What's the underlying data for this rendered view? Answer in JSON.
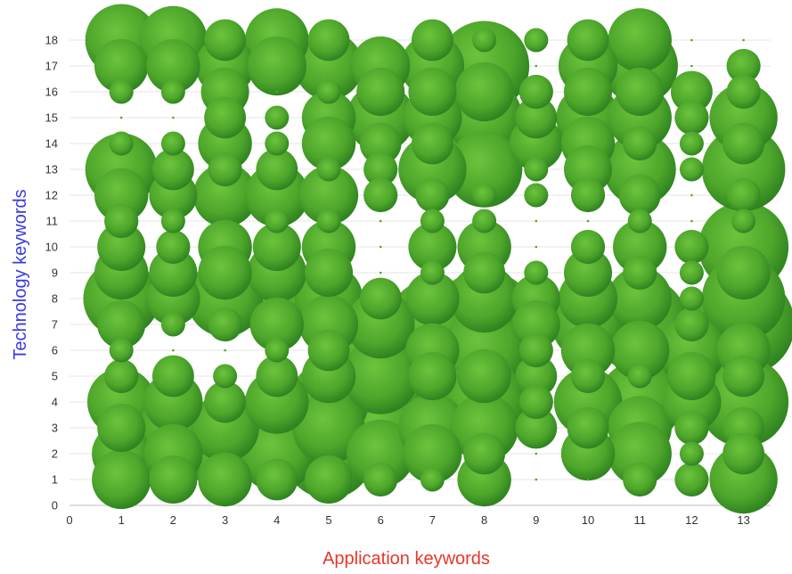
{
  "chart_data": {
    "type": "bubble",
    "xlabel": "Application keywords",
    "ylabel": "Technology keywords",
    "xlim": [
      0,
      13
    ],
    "ylim": [
      0,
      18
    ],
    "x_ticks": [
      "0",
      "1",
      "2",
      "3",
      "4",
      "5",
      "6",
      "7",
      "8",
      "9",
      "10",
      "11",
      "12",
      "13"
    ],
    "y_ticks": [
      "0",
      "1",
      "2",
      "3",
      "4",
      "5",
      "6",
      "7",
      "8",
      "9",
      "10",
      "11",
      "12",
      "13",
      "14",
      "15",
      "16",
      "17",
      "18"
    ],
    "grid": true,
    "legend": "none",
    "colors": {
      "bubble": "#4ea62b",
      "bubble_light": "#6cc43d",
      "bubble_dark": "#2f8420",
      "xlabel": "#e8362a",
      "ylabel": "#3a3ae0"
    },
    "points": [
      {
        "x": 1,
        "y": 18,
        "s": 9
      },
      {
        "x": 1,
        "y": 17,
        "s": 5
      },
      {
        "x": 1,
        "y": 16,
        "s": 1
      },
      {
        "x": 1,
        "y": 15,
        "s": 0
      },
      {
        "x": 1,
        "y": 14,
        "s": 1
      },
      {
        "x": 1,
        "y": 13,
        "s": 9
      },
      {
        "x": 1,
        "y": 12,
        "s": 5
      },
      {
        "x": 1,
        "y": 11,
        "s": 2
      },
      {
        "x": 1,
        "y": 10,
        "s": 4
      },
      {
        "x": 1,
        "y": 9,
        "s": 5
      },
      {
        "x": 1,
        "y": 8,
        "s": 10
      },
      {
        "x": 1,
        "y": 7,
        "s": 4
      },
      {
        "x": 1,
        "y": 6,
        "s": 1
      },
      {
        "x": 1,
        "y": 5,
        "s": 2
      },
      {
        "x": 1,
        "y": 4,
        "s": 8
      },
      {
        "x": 1,
        "y": 3,
        "s": 4
      },
      {
        "x": 1,
        "y": 2,
        "s": 6
      },
      {
        "x": 1,
        "y": 1,
        "s": 6
      },
      {
        "x": 2,
        "y": 18,
        "s": 8
      },
      {
        "x": 2,
        "y": 17,
        "s": 5
      },
      {
        "x": 2,
        "y": 16,
        "s": 1
      },
      {
        "x": 2,
        "y": 15,
        "s": 0
      },
      {
        "x": 2,
        "y": 14,
        "s": 1
      },
      {
        "x": 2,
        "y": 13,
        "s": 3
      },
      {
        "x": 2,
        "y": 12,
        "s": 4
      },
      {
        "x": 2,
        "y": 11,
        "s": 1
      },
      {
        "x": 2,
        "y": 10,
        "s": 2
      },
      {
        "x": 2,
        "y": 9,
        "s": 4
      },
      {
        "x": 2,
        "y": 8,
        "s": 5
      },
      {
        "x": 2,
        "y": 7,
        "s": 1
      },
      {
        "x": 2,
        "y": 6,
        "s": 0
      },
      {
        "x": 2,
        "y": 5,
        "s": 3
      },
      {
        "x": 2,
        "y": 4,
        "s": 6
      },
      {
        "x": 2,
        "y": 3,
        "s": 8
      },
      {
        "x": 2,
        "y": 2,
        "s": 6
      },
      {
        "x": 2,
        "y": 1,
        "s": 4
      },
      {
        "x": 3,
        "y": 18,
        "s": 3
      },
      {
        "x": 3,
        "y": 17,
        "s": 6
      },
      {
        "x": 3,
        "y": 16,
        "s": 4
      },
      {
        "x": 3,
        "y": 15,
        "s": 3
      },
      {
        "x": 3,
        "y": 14,
        "s": 5
      },
      {
        "x": 3,
        "y": 13,
        "s": 2
      },
      {
        "x": 3,
        "y": 12,
        "s": 7
      },
      {
        "x": 3,
        "y": 11,
        "s": 0
      },
      {
        "x": 3,
        "y": 10,
        "s": 5
      },
      {
        "x": 3,
        "y": 9,
        "s": 5
      },
      {
        "x": 3,
        "y": 8,
        "s": 10
      },
      {
        "x": 3,
        "y": 7,
        "s": 2
      },
      {
        "x": 3,
        "y": 6,
        "s": 0
      },
      {
        "x": 3,
        "y": 5,
        "s": 1
      },
      {
        "x": 3,
        "y": 4,
        "s": 3
      },
      {
        "x": 3,
        "y": 3,
        "s": 8
      },
      {
        "x": 3,
        "y": 2,
        "s": 10
      },
      {
        "x": 3,
        "y": 1,
        "s": 5
      },
      {
        "x": 4,
        "y": 18,
        "s": 7
      },
      {
        "x": 4,
        "y": 17,
        "s": 6
      },
      {
        "x": 4,
        "y": 16,
        "s": 0
      },
      {
        "x": 4,
        "y": 15,
        "s": 1
      },
      {
        "x": 4,
        "y": 14,
        "s": 1
      },
      {
        "x": 4,
        "y": 13,
        "s": 3
      },
      {
        "x": 4,
        "y": 12,
        "s": 7
      },
      {
        "x": 4,
        "y": 11,
        "s": 1
      },
      {
        "x": 4,
        "y": 10,
        "s": 4
      },
      {
        "x": 4,
        "y": 9,
        "s": 6
      },
      {
        "x": 4,
        "y": 8,
        "s": 11
      },
      {
        "x": 4,
        "y": 7,
        "s": 5
      },
      {
        "x": 4,
        "y": 6,
        "s": 1
      },
      {
        "x": 4,
        "y": 5,
        "s": 3
      },
      {
        "x": 4,
        "y": 4,
        "s": 7
      },
      {
        "x": 4,
        "y": 3,
        "s": 14
      },
      {
        "x": 4,
        "y": 2,
        "s": 10
      },
      {
        "x": 4,
        "y": 1,
        "s": 3
      },
      {
        "x": 5,
        "y": 18,
        "s": 3
      },
      {
        "x": 5,
        "y": 17,
        "s": 8
      },
      {
        "x": 5,
        "y": 16,
        "s": 1
      },
      {
        "x": 5,
        "y": 15,
        "s": 5
      },
      {
        "x": 5,
        "y": 14,
        "s": 5
      },
      {
        "x": 5,
        "y": 13,
        "s": 1
      },
      {
        "x": 5,
        "y": 12,
        "s": 6
      },
      {
        "x": 5,
        "y": 11,
        "s": 1
      },
      {
        "x": 5,
        "y": 10,
        "s": 5
      },
      {
        "x": 5,
        "y": 9,
        "s": 4
      },
      {
        "x": 5,
        "y": 8,
        "s": 8
      },
      {
        "x": 5,
        "y": 7,
        "s": 6
      },
      {
        "x": 5,
        "y": 6,
        "s": 3
      },
      {
        "x": 5,
        "y": 5,
        "s": 5
      },
      {
        "x": 5,
        "y": 4,
        "s": 11
      },
      {
        "x": 5,
        "y": 3,
        "s": 9
      },
      {
        "x": 5,
        "y": 2,
        "s": 14
      },
      {
        "x": 5,
        "y": 1,
        "s": 4
      },
      {
        "x": 6,
        "y": 18,
        "s": 0
      },
      {
        "x": 6,
        "y": 17,
        "s": 6
      },
      {
        "x": 6,
        "y": 16,
        "s": 4
      },
      {
        "x": 6,
        "y": 15,
        "s": 8
      },
      {
        "x": 6,
        "y": 14,
        "s": 3
      },
      {
        "x": 6,
        "y": 13,
        "s": 2
      },
      {
        "x": 6,
        "y": 12,
        "s": 2
      },
      {
        "x": 6,
        "y": 11,
        "s": 0
      },
      {
        "x": 6,
        "y": 10,
        "s": 0
      },
      {
        "x": 6,
        "y": 9,
        "s": 0
      },
      {
        "x": 6,
        "y": 8,
        "s": 3
      },
      {
        "x": 6,
        "y": 7,
        "s": 8
      },
      {
        "x": 6,
        "y": 6,
        "s": 20
      },
      {
        "x": 6,
        "y": 5,
        "s": 10
      },
      {
        "x": 6,
        "y": 4,
        "s": 14
      },
      {
        "x": 6,
        "y": 3,
        "s": 12
      },
      {
        "x": 6,
        "y": 2,
        "s": 8
      },
      {
        "x": 6,
        "y": 1,
        "s": 2
      },
      {
        "x": 7,
        "y": 18,
        "s": 3
      },
      {
        "x": 7,
        "y": 17,
        "s": 7
      },
      {
        "x": 7,
        "y": 16,
        "s": 4
      },
      {
        "x": 7,
        "y": 15,
        "s": 6
      },
      {
        "x": 7,
        "y": 14,
        "s": 3
      },
      {
        "x": 7,
        "y": 13,
        "s": 8
      },
      {
        "x": 7,
        "y": 12,
        "s": 2
      },
      {
        "x": 7,
        "y": 11,
        "s": 1
      },
      {
        "x": 7,
        "y": 10,
        "s": 4
      },
      {
        "x": 7,
        "y": 9,
        "s": 1
      },
      {
        "x": 7,
        "y": 8,
        "s": 5
      },
      {
        "x": 7,
        "y": 7,
        "s": 14
      },
      {
        "x": 7,
        "y": 6,
        "s": 5
      },
      {
        "x": 7,
        "y": 5,
        "s": 4
      },
      {
        "x": 7,
        "y": 4,
        "s": 18
      },
      {
        "x": 7,
        "y": 3,
        "s": 8
      },
      {
        "x": 7,
        "y": 2,
        "s": 6
      },
      {
        "x": 7,
        "y": 1,
        "s": 1
      },
      {
        "x": 8,
        "y": 18,
        "s": 1
      },
      {
        "x": 8,
        "y": 17,
        "s": 14
      },
      {
        "x": 8,
        "y": 16,
        "s": 6
      },
      {
        "x": 8,
        "y": 15,
        "s": 10
      },
      {
        "x": 8,
        "y": 14,
        "s": 12
      },
      {
        "x": 8,
        "y": 13,
        "s": 10
      },
      {
        "x": 8,
        "y": 12,
        "s": 1
      },
      {
        "x": 8,
        "y": 11,
        "s": 1
      },
      {
        "x": 8,
        "y": 10,
        "s": 5
      },
      {
        "x": 8,
        "y": 9,
        "s": 3
      },
      {
        "x": 8,
        "y": 8,
        "s": 8
      },
      {
        "x": 8,
        "y": 7,
        "s": 20
      },
      {
        "x": 8,
        "y": 6,
        "s": 12
      },
      {
        "x": 8,
        "y": 5,
        "s": 5
      },
      {
        "x": 8,
        "y": 4,
        "s": 12
      },
      {
        "x": 8,
        "y": 3,
        "s": 8
      },
      {
        "x": 8,
        "y": 2,
        "s": 3
      },
      {
        "x": 8,
        "y": 1,
        "s": 5
      },
      {
        "x": 9,
        "y": 18,
        "s": 1
      },
      {
        "x": 9,
        "y": 17,
        "s": 0
      },
      {
        "x": 9,
        "y": 16,
        "s": 2
      },
      {
        "x": 9,
        "y": 15,
        "s": 3
      },
      {
        "x": 9,
        "y": 14,
        "s": 5
      },
      {
        "x": 9,
        "y": 13,
        "s": 1
      },
      {
        "x": 9,
        "y": 12,
        "s": 1
      },
      {
        "x": 9,
        "y": 11,
        "s": 0
      },
      {
        "x": 9,
        "y": 10,
        "s": 0
      },
      {
        "x": 9,
        "y": 9,
        "s": 1
      },
      {
        "x": 9,
        "y": 8,
        "s": 4
      },
      {
        "x": 9,
        "y": 7,
        "s": 4
      },
      {
        "x": 9,
        "y": 6,
        "s": 2
      },
      {
        "x": 9,
        "y": 5,
        "s": 3
      },
      {
        "x": 9,
        "y": 4,
        "s": 2
      },
      {
        "x": 9,
        "y": 3,
        "s": 3
      },
      {
        "x": 9,
        "y": 2,
        "s": 0
      },
      {
        "x": 9,
        "y": 1,
        "s": 0
      },
      {
        "x": 10,
        "y": 18,
        "s": 3
      },
      {
        "x": 10,
        "y": 17,
        "s": 6
      },
      {
        "x": 10,
        "y": 16,
        "s": 4
      },
      {
        "x": 10,
        "y": 15,
        "s": 7
      },
      {
        "x": 10,
        "y": 14,
        "s": 5
      },
      {
        "x": 10,
        "y": 13,
        "s": 4
      },
      {
        "x": 10,
        "y": 12,
        "s": 2
      },
      {
        "x": 10,
        "y": 11,
        "s": 0
      },
      {
        "x": 10,
        "y": 10,
        "s": 2
      },
      {
        "x": 10,
        "y": 9,
        "s": 4
      },
      {
        "x": 10,
        "y": 8,
        "s": 6
      },
      {
        "x": 10,
        "y": 7,
        "s": 9
      },
      {
        "x": 10,
        "y": 6,
        "s": 5
      },
      {
        "x": 10,
        "y": 5,
        "s": 2
      },
      {
        "x": 10,
        "y": 4,
        "s": 8
      },
      {
        "x": 10,
        "y": 3,
        "s": 3
      },
      {
        "x": 10,
        "y": 2,
        "s": 5
      },
      {
        "x": 10,
        "y": 1,
        "s": 0
      },
      {
        "x": 11,
        "y": 18,
        "s": 7
      },
      {
        "x": 11,
        "y": 17,
        "s": 10
      },
      {
        "x": 11,
        "y": 16,
        "s": 4
      },
      {
        "x": 11,
        "y": 15,
        "s": 7
      },
      {
        "x": 11,
        "y": 14,
        "s": 2
      },
      {
        "x": 11,
        "y": 13,
        "s": 9
      },
      {
        "x": 11,
        "y": 12,
        "s": 3
      },
      {
        "x": 11,
        "y": 11,
        "s": 1
      },
      {
        "x": 11,
        "y": 10,
        "s": 5
      },
      {
        "x": 11,
        "y": 9,
        "s": 2
      },
      {
        "x": 11,
        "y": 8,
        "s": 7
      },
      {
        "x": 11,
        "y": 7,
        "s": 16
      },
      {
        "x": 11,
        "y": 6,
        "s": 6
      },
      {
        "x": 11,
        "y": 5,
        "s": 1
      },
      {
        "x": 11,
        "y": 4,
        "s": 12
      },
      {
        "x": 11,
        "y": 3,
        "s": 7
      },
      {
        "x": 11,
        "y": 2,
        "s": 7
      },
      {
        "x": 11,
        "y": 1,
        "s": 2
      },
      {
        "x": 12,
        "y": 18,
        "s": 0
      },
      {
        "x": 12,
        "y": 17,
        "s": 0
      },
      {
        "x": 12,
        "y": 16,
        "s": 3
      },
      {
        "x": 12,
        "y": 15,
        "s": 2
      },
      {
        "x": 12,
        "y": 14,
        "s": 1
      },
      {
        "x": 12,
        "y": 13,
        "s": 1
      },
      {
        "x": 12,
        "y": 12,
        "s": 0
      },
      {
        "x": 12,
        "y": 11,
        "s": 0
      },
      {
        "x": 12,
        "y": 10,
        "s": 2
      },
      {
        "x": 12,
        "y": 9,
        "s": 1
      },
      {
        "x": 12,
        "y": 8,
        "s": 1
      },
      {
        "x": 12,
        "y": 7,
        "s": 2
      },
      {
        "x": 12,
        "y": 6,
        "s": 8
      },
      {
        "x": 12,
        "y": 5,
        "s": 4
      },
      {
        "x": 12,
        "y": 4,
        "s": 6
      },
      {
        "x": 12,
        "y": 3,
        "s": 2
      },
      {
        "x": 12,
        "y": 2,
        "s": 1
      },
      {
        "x": 12,
        "y": 1,
        "s": 2
      },
      {
        "x": 13,
        "y": 18,
        "s": 0
      },
      {
        "x": 13,
        "y": 17,
        "s": 2
      },
      {
        "x": 13,
        "y": 16,
        "s": 2
      },
      {
        "x": 13,
        "y": 15,
        "s": 8
      },
      {
        "x": 13,
        "y": 14,
        "s": 3
      },
      {
        "x": 13,
        "y": 13,
        "s": 12
      },
      {
        "x": 13,
        "y": 12,
        "s": 2
      },
      {
        "x": 13,
        "y": 11,
        "s": 1
      },
      {
        "x": 13,
        "y": 10,
        "s": 14
      },
      {
        "x": 13,
        "y": 9,
        "s": 5
      },
      {
        "x": 13,
        "y": 8,
        "s": 12
      },
      {
        "x": 13,
        "y": 7,
        "s": 18
      },
      {
        "x": 13,
        "y": 6,
        "s": 5
      },
      {
        "x": 13,
        "y": 5,
        "s": 3
      },
      {
        "x": 13,
        "y": 4,
        "s": 14
      },
      {
        "x": 13,
        "y": 3,
        "s": 3
      },
      {
        "x": 13,
        "y": 2,
        "s": 3
      },
      {
        "x": 13,
        "y": 1,
        "s": 8
      }
    ]
  }
}
